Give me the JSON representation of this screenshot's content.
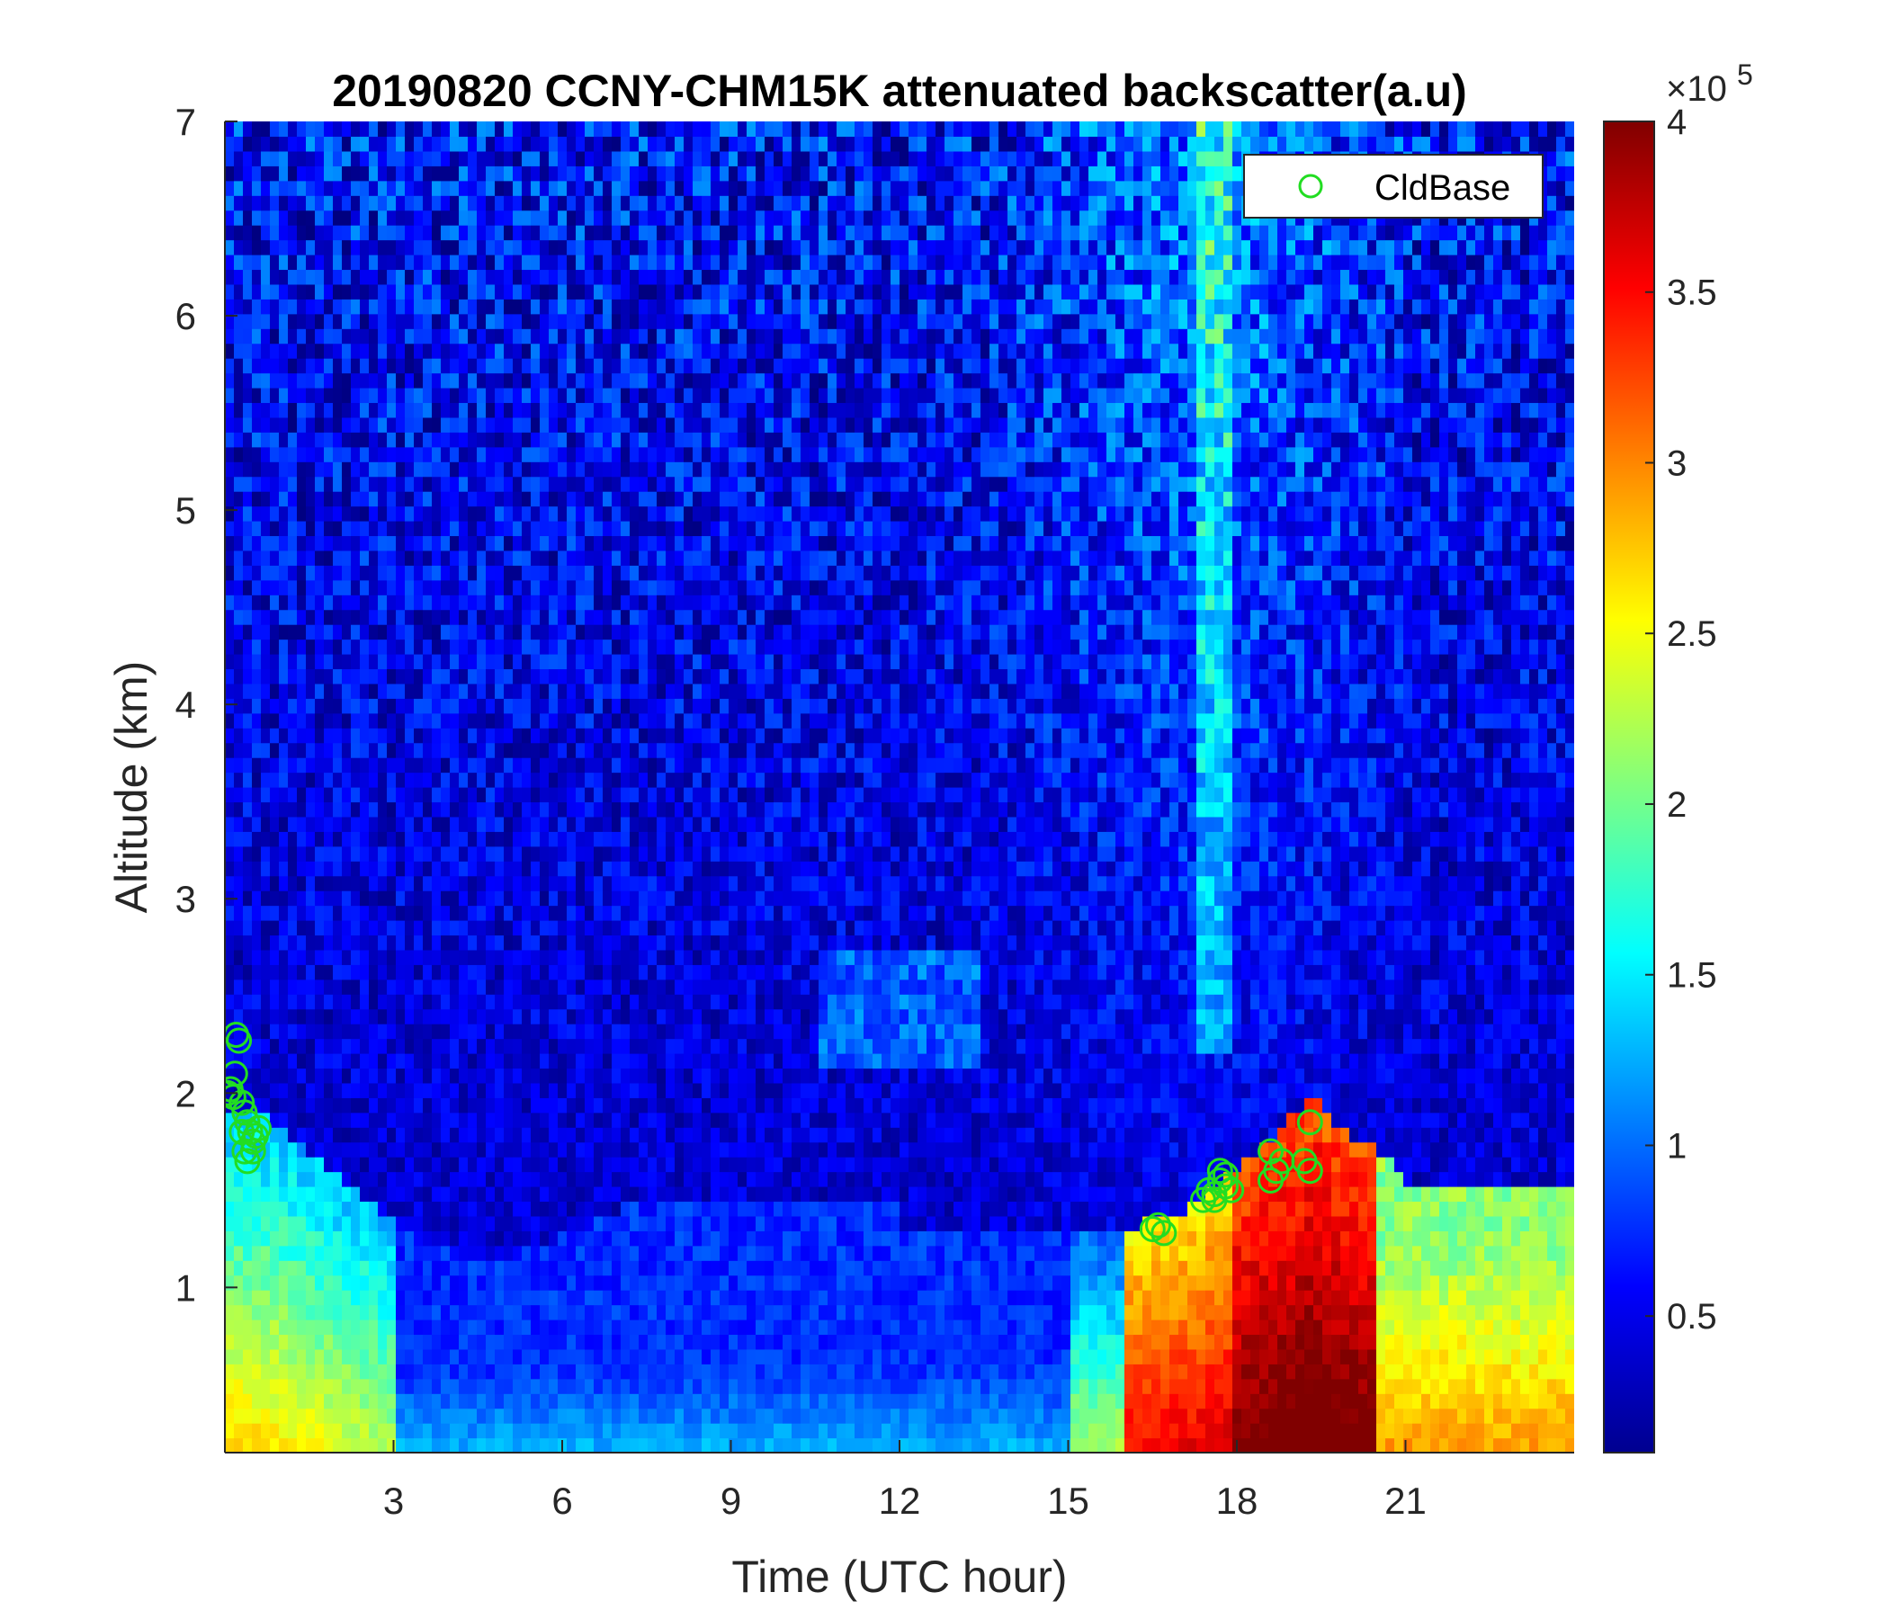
{
  "chart_data": {
    "type": "heatmap",
    "title": "20190820 CCNY-CHM15K attenuated backscatter(a.u)",
    "xlabel": "Time (UTC hour)",
    "ylabel": "Altitude (km)",
    "xlim": [
      0,
      24
    ],
    "ylim": [
      0.15,
      7
    ],
    "xticks": [
      "3",
      "6",
      "9",
      "12",
      "15",
      "18",
      "21"
    ],
    "yticks": [
      "1",
      "2",
      "3",
      "4",
      "5",
      "6",
      "7"
    ],
    "colorbar": {
      "colormap": "jet",
      "range": [
        0.1,
        4
      ],
      "ticks": [
        "0.5",
        "1",
        "1.5",
        "2",
        "2.5",
        "3",
        "3.5",
        "4"
      ],
      "multiplier_base": "×10",
      "multiplier_exponent": "5"
    },
    "legend": {
      "label": "CldBase",
      "placement": "top-right",
      "color": "#22dd22",
      "marker": "circle"
    },
    "series": [
      {
        "name": "CldBase",
        "points": [
          [
            0.05,
            2.0
          ],
          [
            0.1,
            2.02
          ],
          [
            0.15,
            1.98
          ],
          [
            0.2,
            2.3
          ],
          [
            0.25,
            2.27
          ],
          [
            0.18,
            2.1
          ],
          [
            0.3,
            1.95
          ],
          [
            0.35,
            1.9
          ],
          [
            0.4,
            1.85
          ],
          [
            0.3,
            1.8
          ],
          [
            0.45,
            1.8
          ],
          [
            0.5,
            1.75
          ],
          [
            0.55,
            1.78
          ],
          [
            0.35,
            1.7
          ],
          [
            0.4,
            1.65
          ],
          [
            0.6,
            1.82
          ],
          [
            0.5,
            1.7
          ],
          [
            16.5,
            1.3
          ],
          [
            16.6,
            1.32
          ],
          [
            16.7,
            1.28
          ],
          [
            17.4,
            1.45
          ],
          [
            17.5,
            1.5
          ],
          [
            17.6,
            1.48
          ],
          [
            17.7,
            1.55
          ],
          [
            17.8,
            1.52
          ],
          [
            17.9,
            1.5
          ],
          [
            17.7,
            1.6
          ],
          [
            17.8,
            1.58
          ],
          [
            17.6,
            1.45
          ],
          [
            18.6,
            1.7
          ],
          [
            18.7,
            1.6
          ],
          [
            18.6,
            1.55
          ],
          [
            18.8,
            1.65
          ],
          [
            19.2,
            1.65
          ],
          [
            19.3,
            1.6
          ],
          [
            19.3,
            1.85
          ]
        ]
      }
    ]
  }
}
